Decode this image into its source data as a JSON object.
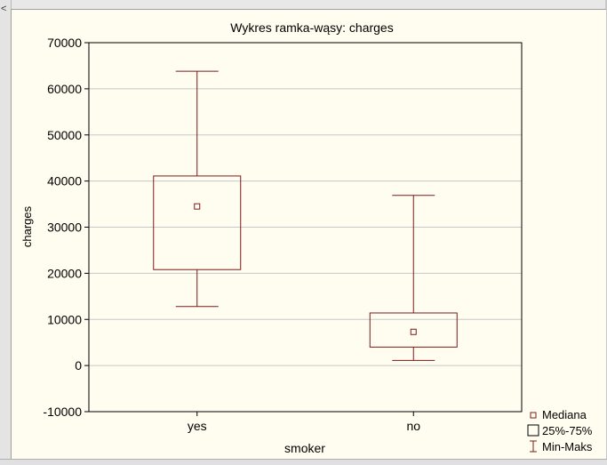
{
  "window": {
    "left_arrow": "<"
  },
  "chart_data": {
    "type": "box",
    "title": "Wykres ramka-wąsy:   charges",
    "xlabel": "smoker",
    "ylabel": "charges",
    "ylim": [
      -10000,
      70000
    ],
    "yticks": [
      -10000,
      0,
      10000,
      20000,
      30000,
      40000,
      50000,
      60000,
      70000
    ],
    "grid": true,
    "categories": [
      "yes",
      "no"
    ],
    "boxes": [
      {
        "category": "yes",
        "min": 12800,
        "q1": 20800,
        "median": 34500,
        "q3": 41100,
        "max": 63800
      },
      {
        "category": "no",
        "min": 1100,
        "q1": 4000,
        "median": 7300,
        "q3": 11400,
        "max": 36900
      }
    ],
    "legend": {
      "position": "bottom-right",
      "entries": [
        "Mediana",
        "25%-75%",
        "Min-Maks"
      ]
    },
    "colors": {
      "mark": "#7a1a1a",
      "grid": "#c8c8c8",
      "background": "#fffdf0"
    }
  }
}
